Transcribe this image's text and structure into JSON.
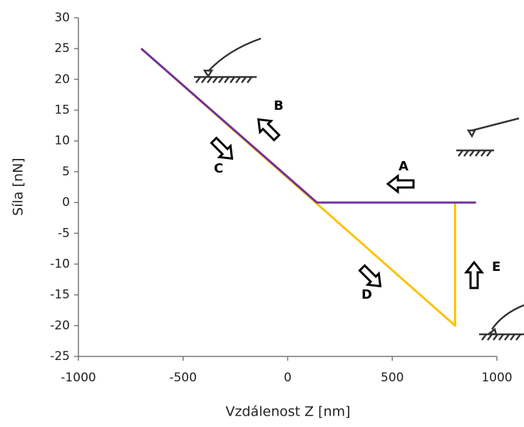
{
  "chart_data": {
    "type": "line",
    "x_label": "Vzdálenost Z [nm]",
    "y_label": "Síla [nN]",
    "xlim": [
      -1000,
      1000
    ],
    "xticks": [
      -1000,
      -500,
      0,
      500,
      1000
    ],
    "ylim": [
      -25,
      30
    ],
    "yticks": [
      -25,
      -20,
      -15,
      -10,
      -5,
      0,
      5,
      10,
      15,
      20,
      25,
      30
    ],
    "grid": false,
    "series": [
      {
        "color": "#ffc000",
        "x": [
          -700,
          800,
          800
        ],
        "values": [
          25,
          -20,
          0
        ]
      },
      {
        "color": "#7030a0",
        "x": [
          -700,
          140,
          900
        ],
        "values": [
          25,
          0,
          0
        ]
      }
    ],
    "annotations": [
      "A",
      "B",
      "C",
      "D",
      "E"
    ]
  }
}
